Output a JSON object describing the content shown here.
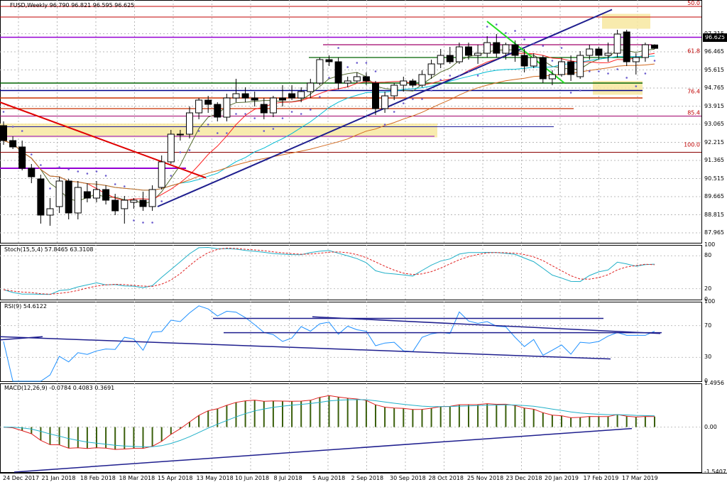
{
  "header": {
    "symbol_line": "FUSD,Weekly  96.790 96.821 96.595 96.625"
  },
  "chart_data": [
    {
      "type": "candlestick",
      "pane": "price",
      "title": "FUSD,Weekly  96.790 96.821 96.595 96.625",
      "last_price_label": "96.625",
      "ylim": [
        87.5,
        98.9
      ],
      "y_ticks": [
        "97.315",
        "96.465",
        "95.615",
        "94.765",
        "93.915",
        "93.065",
        "92.215",
        "91.365",
        "90.515",
        "89.665",
        "88.815",
        "87.965"
      ],
      "fib_levels": [
        {
          "label": "50.0",
          "value": 98.6
        },
        {
          "label": "61.8",
          "value": 96.35
        },
        {
          "label": "76.4",
          "value": 94.45
        },
        {
          "label": "85.4",
          "value": 93.45
        },
        {
          "label": "100.0",
          "value": 91.95
        }
      ],
      "x_labels": [
        "24 Dec 2017",
        "21 Jan 2018",
        "18 Feb 2018",
        "18 Mar 2018",
        "15 Apr 2018",
        "13 May 2018",
        "10 Jun 2018",
        "8 Jul 2018",
        "5 Aug 2018",
        "2 Sep 2018",
        "30 Sep 2018",
        "28 Oct 2018",
        "25 Nov 2018",
        "23 Dec 2018",
        "20 Jan 2019",
        "17 Feb 2019",
        "17 Mar 2019"
      ],
      "candles": [
        {
          "o": 93.0,
          "h": 93.2,
          "l": 92.1,
          "c": 92.3
        },
        {
          "o": 92.3,
          "h": 92.5,
          "l": 91.9,
          "c": 92.0
        },
        {
          "o": 92.0,
          "h": 92.3,
          "l": 90.9,
          "c": 91.0
        },
        {
          "o": 91.0,
          "h": 91.2,
          "l": 90.3,
          "c": 90.6
        },
        {
          "o": 90.5,
          "h": 90.7,
          "l": 88.4,
          "c": 88.8
        },
        {
          "o": 88.8,
          "h": 89.6,
          "l": 88.3,
          "c": 89.1
        },
        {
          "o": 89.2,
          "h": 90.6,
          "l": 88.9,
          "c": 90.4
        },
        {
          "o": 90.4,
          "h": 90.5,
          "l": 88.6,
          "c": 88.9
        },
        {
          "o": 88.9,
          "h": 90.4,
          "l": 88.6,
          "c": 90.1
        },
        {
          "o": 89.9,
          "h": 90.3,
          "l": 89.4,
          "c": 89.6
        },
        {
          "o": 89.6,
          "h": 90.4,
          "l": 89.4,
          "c": 90.0
        },
        {
          "o": 90.0,
          "h": 90.2,
          "l": 89.3,
          "c": 89.5
        },
        {
          "o": 89.5,
          "h": 89.8,
          "l": 88.8,
          "c": 89.0
        },
        {
          "o": 89.1,
          "h": 89.7,
          "l": 88.4,
          "c": 89.5
        },
        {
          "o": 89.4,
          "h": 89.6,
          "l": 89.1,
          "c": 89.5
        },
        {
          "o": 89.5,
          "h": 89.9,
          "l": 89.0,
          "c": 89.2
        },
        {
          "o": 89.2,
          "h": 90.2,
          "l": 89.0,
          "c": 90.0
        },
        {
          "o": 90.1,
          "h": 91.6,
          "l": 90.0,
          "c": 91.3
        },
        {
          "o": 91.3,
          "h": 92.8,
          "l": 91.2,
          "c": 92.6
        },
        {
          "o": 92.6,
          "h": 92.8,
          "l": 92.3,
          "c": 92.6
        },
        {
          "o": 92.6,
          "h": 93.9,
          "l": 92.4,
          "c": 93.6
        },
        {
          "o": 93.6,
          "h": 94.3,
          "l": 93.3,
          "c": 94.2
        },
        {
          "o": 94.2,
          "h": 94.4,
          "l": 93.6,
          "c": 94.0
        },
        {
          "o": 94.0,
          "h": 94.1,
          "l": 93.2,
          "c": 93.4
        },
        {
          "o": 93.4,
          "h": 94.5,
          "l": 93.2,
          "c": 94.3
        },
        {
          "o": 94.3,
          "h": 95.2,
          "l": 94.1,
          "c": 94.5
        },
        {
          "o": 94.5,
          "h": 94.8,
          "l": 94.1,
          "c": 94.3
        },
        {
          "o": 94.3,
          "h": 94.6,
          "l": 93.9,
          "c": 94.2
        },
        {
          "o": 94.0,
          "h": 94.3,
          "l": 93.3,
          "c": 93.6
        },
        {
          "o": 93.6,
          "h": 94.4,
          "l": 93.4,
          "c": 94.3
        },
        {
          "o": 94.3,
          "h": 94.9,
          "l": 93.9,
          "c": 94.2
        },
        {
          "o": 94.5,
          "h": 94.9,
          "l": 94.2,
          "c": 94.3
        },
        {
          "o": 94.3,
          "h": 94.8,
          "l": 94.1,
          "c": 94.6
        },
        {
          "o": 94.6,
          "h": 95.2,
          "l": 94.3,
          "c": 95.0
        },
        {
          "o": 95.0,
          "h": 96.2,
          "l": 94.9,
          "c": 96.1
        },
        {
          "o": 96.1,
          "h": 96.3,
          "l": 95.8,
          "c": 96.0
        },
        {
          "o": 96.0,
          "h": 96.2,
          "l": 94.7,
          "c": 95.0
        },
        {
          "o": 95.0,
          "h": 95.3,
          "l": 94.8,
          "c": 95.1
        },
        {
          "o": 95.1,
          "h": 95.5,
          "l": 95.0,
          "c": 95.3
        },
        {
          "o": 95.3,
          "h": 95.5,
          "l": 94.9,
          "c": 95.1
        },
        {
          "o": 95.0,
          "h": 95.1,
          "l": 93.5,
          "c": 93.8
        },
        {
          "o": 93.8,
          "h": 94.6,
          "l": 93.6,
          "c": 94.4
        },
        {
          "o": 94.4,
          "h": 95.0,
          "l": 94.2,
          "c": 94.9
        },
        {
          "o": 94.9,
          "h": 95.3,
          "l": 94.6,
          "c": 95.1
        },
        {
          "o": 95.1,
          "h": 95.2,
          "l": 94.8,
          "c": 94.9
        },
        {
          "o": 94.9,
          "h": 95.6,
          "l": 94.8,
          "c": 95.4
        },
        {
          "o": 95.4,
          "h": 96.1,
          "l": 95.2,
          "c": 95.9
        },
        {
          "o": 95.9,
          "h": 96.6,
          "l": 95.7,
          "c": 96.3
        },
        {
          "o": 96.3,
          "h": 96.7,
          "l": 95.9,
          "c": 96.0
        },
        {
          "o": 96.0,
          "h": 96.9,
          "l": 95.9,
          "c": 96.7
        },
        {
          "o": 96.7,
          "h": 96.9,
          "l": 96.1,
          "c": 96.3
        },
        {
          "o": 96.3,
          "h": 96.8,
          "l": 95.9,
          "c": 96.4
        },
        {
          "o": 96.4,
          "h": 97.2,
          "l": 96.2,
          "c": 96.9
        },
        {
          "o": 96.9,
          "h": 97.3,
          "l": 96.2,
          "c": 96.4
        },
        {
          "o": 96.4,
          "h": 96.9,
          "l": 96.1,
          "c": 96.8
        },
        {
          "o": 96.8,
          "h": 97.0,
          "l": 96.0,
          "c": 96.3
        },
        {
          "o": 96.3,
          "h": 96.6,
          "l": 95.5,
          "c": 95.8
        },
        {
          "o": 95.8,
          "h": 96.4,
          "l": 95.7,
          "c": 96.2
        },
        {
          "o": 96.2,
          "h": 96.3,
          "l": 95.0,
          "c": 95.2
        },
        {
          "o": 95.2,
          "h": 95.6,
          "l": 94.9,
          "c": 95.4
        },
        {
          "o": 95.4,
          "h": 96.2,
          "l": 95.3,
          "c": 96.0
        },
        {
          "o": 96.0,
          "h": 96.3,
          "l": 95.1,
          "c": 95.4
        },
        {
          "o": 95.3,
          "h": 96.5,
          "l": 95.2,
          "c": 96.3
        },
        {
          "o": 96.3,
          "h": 96.8,
          "l": 96.1,
          "c": 96.6
        },
        {
          "o": 96.6,
          "h": 96.7,
          "l": 96.1,
          "c": 96.3
        },
        {
          "o": 96.3,
          "h": 96.9,
          "l": 96.0,
          "c": 96.4
        },
        {
          "o": 96.4,
          "h": 97.5,
          "l": 96.2,
          "c": 97.3
        },
        {
          "o": 97.4,
          "h": 97.5,
          "l": 95.8,
          "c": 96.0
        },
        {
          "o": 96.0,
          "h": 96.4,
          "l": 95.4,
          "c": 96.2
        },
        {
          "o": 96.2,
          "h": 96.9,
          "l": 96.0,
          "c": 96.8
        },
        {
          "o": 96.79,
          "h": 96.82,
          "l": 96.6,
          "c": 96.63
        }
      ]
    },
    {
      "type": "line",
      "pane": "stochastic",
      "title": "Stoch(15,5,4) 57.8465 63.3108",
      "ylim": [
        0,
        100
      ],
      "y_ticks": [
        "100",
        "80",
        "20",
        "0"
      ]
    },
    {
      "type": "line",
      "pane": "rsi",
      "title": "RSI(9) 54.6122",
      "ylim": [
        0,
        100
      ],
      "y_ticks": [
        "100",
        "70",
        "30",
        "0"
      ]
    },
    {
      "type": "bar",
      "pane": "macd",
      "title": "MACD(12,26,9) -0.0784 0.4083 0.3691",
      "ylim": [
        -1.5407,
        1.4956
      ],
      "y_ticks": [
        "1.4956",
        "0.00",
        "-1.5407"
      ]
    }
  ]
}
